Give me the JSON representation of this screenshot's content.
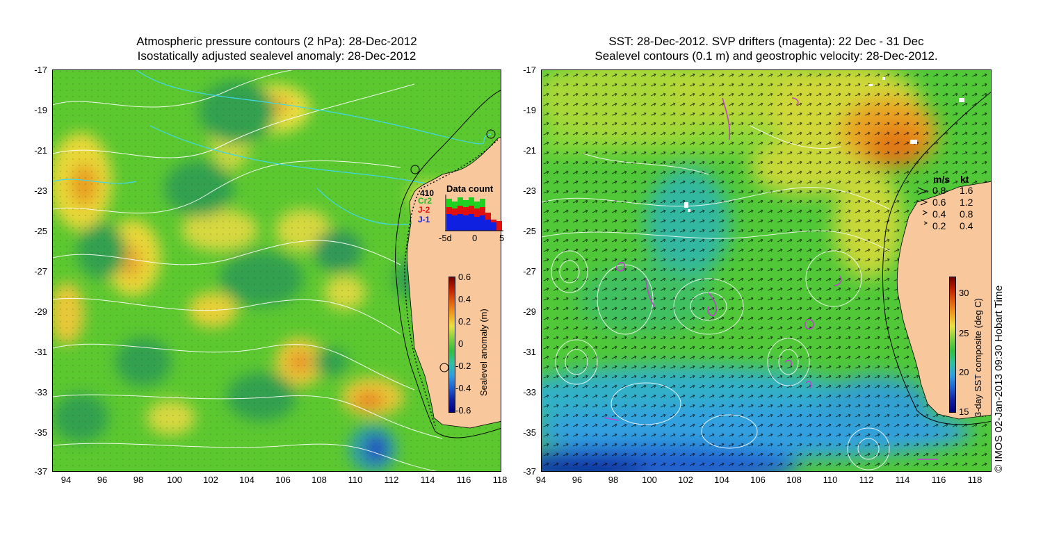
{
  "left_panel": {
    "title_line1": "Atmospheric pressure contours (2 hPa): 28-Dec-2012",
    "title_line2": "Isostatically adjusted sealevel anomaly: 28-Dec-2012",
    "y_ticks": [
      "-17",
      "-19",
      "-21",
      "-23",
      "-25",
      "-27",
      "-29",
      "-31",
      "-33",
      "-35",
      "-37"
    ],
    "x_ticks": [
      "94",
      "96",
      "98",
      "100",
      "102",
      "104",
      "106",
      "108",
      "110",
      "112",
      "114",
      "116",
      "118"
    ],
    "data_count": {
      "title": "Data count",
      "series_labels": [
        "410",
        "Cr2",
        "J-2",
        "J-1"
      ],
      "x_ticks": [
        "-5d",
        "0",
        "5"
      ]
    },
    "colorbar": {
      "label": "Sealevel anomaly (m)",
      "ticks": [
        "0.6",
        "0.4",
        "0.2",
        "0",
        "-0.2",
        "-0.4",
        "-0.6"
      ]
    }
  },
  "right_panel": {
    "title_line1": "SST: 28-Dec-2012. SVP drifters (magenta): 22 Dec - 31 Dec",
    "title_line2": "Sealevel contours (0.1 m) and geostrophic velocity: 28-Dec-2012.",
    "y_ticks": [
      "-17",
      "-19",
      "-21",
      "-23",
      "-25",
      "-27",
      "-29",
      "-31",
      "-33",
      "-35",
      "-37"
    ],
    "x_ticks": [
      "94",
      "96",
      "98",
      "100",
      "102",
      "104",
      "106",
      "108",
      "110",
      "112",
      "114",
      "116",
      "118"
    ],
    "velocity_legend": {
      "header_ms": "m/s",
      "header_kt": "kt",
      "rows": [
        {
          "ms": "0.8",
          "kt": "1.6"
        },
        {
          "ms": "0.6",
          "kt": "1.2"
        },
        {
          "ms": "0.4",
          "kt": "0.8"
        },
        {
          "ms": "0.2",
          "kt": "0.4"
        }
      ]
    },
    "colorbar": {
      "label": "3-day SST composite (deg C)",
      "ticks": [
        "30",
        "25",
        "20",
        "15"
      ]
    }
  },
  "credit": "© IMOS 02-Jan-2013 09:30 Hobart Time",
  "colors": {
    "land": "#f8c89c",
    "contour_white": "#ffffff",
    "contour_cyan": "#40d8e8",
    "drifter_magenta": "#c040d0"
  }
}
